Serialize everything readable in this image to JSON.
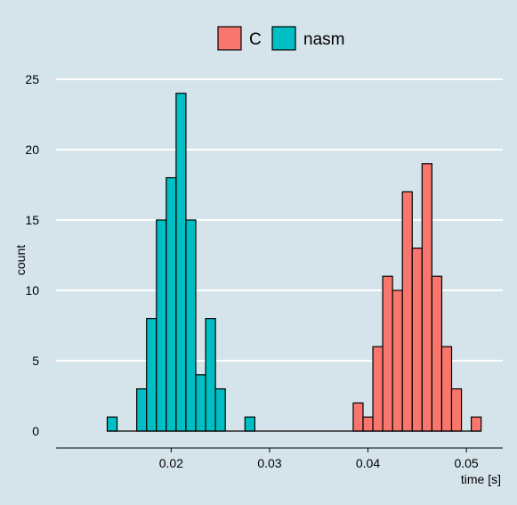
{
  "chart_data": {
    "type": "bar",
    "title": "",
    "xlabel": "time [s]",
    "ylabel": "count",
    "xlim": [
      0.0083,
      0.0537
    ],
    "ylim": [
      -1.2,
      26.2
    ],
    "grid": "horizontal",
    "legend_position": "top",
    "bin_width": 0.001,
    "x_ticks": [
      {
        "value": 0.02,
        "label": "0.02"
      },
      {
        "value": 0.03,
        "label": "0.03"
      },
      {
        "value": 0.04,
        "label": "0.04"
      },
      {
        "value": 0.05,
        "label": "0.05"
      }
    ],
    "y_ticks": [
      {
        "value": 0,
        "label": "0"
      },
      {
        "value": 5,
        "label": "5"
      },
      {
        "value": 10,
        "label": "10"
      },
      {
        "value": 15,
        "label": "15"
      },
      {
        "value": 20,
        "label": "20"
      },
      {
        "value": 25,
        "label": "25"
      }
    ],
    "x": [
      0.014,
      0.015,
      0.016,
      0.017,
      0.018,
      0.019,
      0.02,
      0.021,
      0.022,
      0.023,
      0.024,
      0.025,
      0.026,
      0.027,
      0.028,
      0.029,
      0.03,
      0.031,
      0.032,
      0.033,
      0.034,
      0.035,
      0.036,
      0.037,
      0.038,
      0.039,
      0.04,
      0.041,
      0.042,
      0.043,
      0.044,
      0.045,
      0.046,
      0.047,
      0.048,
      0.049,
      0.05,
      0.051
    ],
    "series": [
      {
        "name": "C",
        "color": "#f8766d",
        "values": [
          0,
          0,
          0,
          0,
          0,
          0,
          0,
          0,
          0,
          0,
          0,
          0,
          0,
          0,
          0,
          0,
          0,
          0,
          0,
          0,
          0,
          0,
          0,
          0,
          0,
          2,
          1,
          6,
          11,
          10,
          17,
          13,
          19,
          11,
          6,
          3,
          0,
          1
        ]
      },
      {
        "name": "nasm",
        "color": "#00bfc4",
        "values": [
          1,
          0,
          0,
          3,
          8,
          15,
          18,
          24,
          15,
          4,
          8,
          3,
          0,
          0,
          1,
          0,
          0,
          0,
          0,
          0,
          0,
          0,
          0,
          0,
          0,
          0,
          0,
          0,
          0,
          0,
          0,
          0,
          0,
          0,
          0,
          0,
          0,
          0
        ]
      }
    ]
  }
}
